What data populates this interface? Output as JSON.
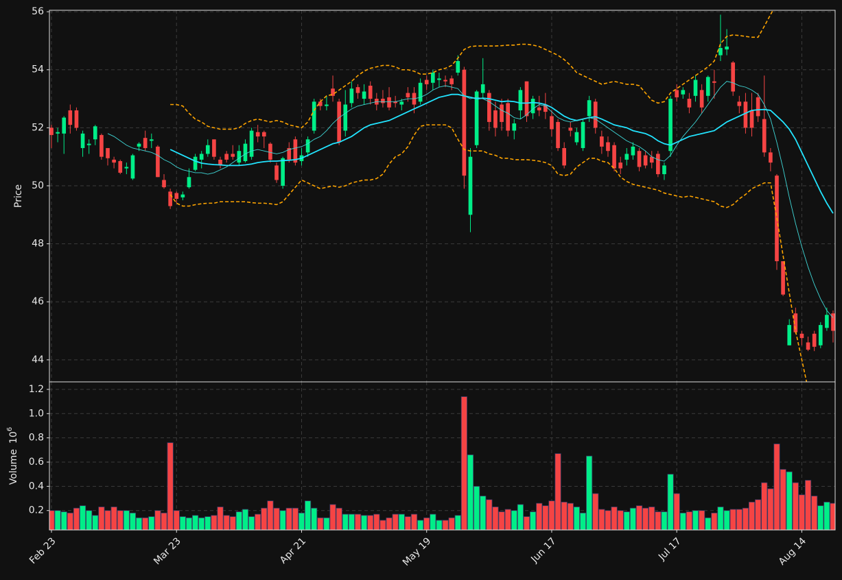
{
  "chart_data": {
    "type": "candlestick",
    "ylabel": "Price",
    "up_color": "#00ee88",
    "down_color": "#f54444",
    "grid": true,
    "ylim": [
      43.24,
      56.05
    ],
    "yticks": [
      44,
      46,
      48,
      50,
      52,
      54,
      56
    ],
    "categories": [
      "Feb 23",
      null,
      null,
      null,
      null,
      null,
      null,
      null,
      null,
      null,
      null,
      null,
      null,
      null,
      null,
      null,
      null,
      null,
      null,
      null,
      "Mar 23",
      null,
      null,
      null,
      null,
      null,
      null,
      null,
      null,
      null,
      null,
      null,
      null,
      null,
      null,
      null,
      null,
      null,
      null,
      null,
      "Apr 21",
      null,
      null,
      null,
      null,
      null,
      null,
      null,
      null,
      null,
      null,
      null,
      null,
      null,
      null,
      null,
      null,
      null,
      null,
      null,
      "May 19",
      null,
      null,
      null,
      null,
      null,
      null,
      null,
      null,
      null,
      null,
      null,
      null,
      null,
      null,
      null,
      null,
      null,
      null,
      null,
      "Jun 17",
      null,
      null,
      null,
      null,
      null,
      null,
      null,
      null,
      null,
      null,
      null,
      null,
      null,
      null,
      null,
      null,
      null,
      null,
      null,
      "Jul 17",
      null,
      null,
      null,
      null,
      null,
      null,
      null,
      null,
      null,
      null,
      null,
      null,
      null,
      null,
      null,
      null,
      null,
      null,
      null,
      "Aug 14",
      null,
      null,
      null,
      null,
      null
    ],
    "open": [
      52.0,
      51.8,
      51.8,
      52.6,
      52.6,
      51.3,
      51.4,
      51.6,
      51.75,
      51.3,
      50.9,
      50.85,
      50.6,
      50.25,
      51.35,
      51.65,
      51.55,
      51.35,
      50.2,
      49.8,
      49.75,
      49.6,
      49.95,
      50.55,
      50.9,
      51.1,
      51.6,
      50.9,
      51.1,
      51.1,
      50.8,
      50.85,
      51.0,
      51.85,
      51.85,
      51.45,
      50.7,
      50.0,
      51.3,
      51.6,
      50.85,
      51.15,
      51.9,
      52.9,
      52.75,
      53.35,
      52.9,
      51.9,
      52.85,
      53.4,
      53.0,
      53.45,
      53.0,
      53.0,
      53.05,
      52.9,
      52.8,
      53.2,
      53.2,
      52.9,
      53.65,
      53.55,
      53.65,
      53.65,
      53.7,
      53.9,
      54.0,
      49.0,
      51.4,
      53.2,
      53.2,
      52.6,
      52.8,
      52.85,
      51.9,
      52.6,
      53.6,
      52.5,
      52.7,
      52.8,
      52.4,
      52.2,
      51.3,
      52.0,
      51.5,
      51.3,
      52.4,
      52.9,
      51.7,
      51.5,
      51.4,
      50.8,
      50.9,
      51.05,
      51.2,
      51.05,
      51.0,
      51.1,
      50.4,
      51.2,
      53.3,
      53.15,
      53.0,
      53.1,
      53.3,
      53.1,
      53.6,
      54.5,
      54.7,
      54.25,
      52.9,
      52.9,
      52.6,
      53.05,
      52.3,
      51.15,
      50.35,
      47.4,
      44.5,
      45.6,
      44.9,
      44.6,
      44.9,
      44.5,
      45.1,
      45.6
    ],
    "high": [
      52.1,
      52.0,
      52.4,
      52.8,
      52.7,
      51.9,
      51.6,
      52.1,
      51.8,
      51.3,
      51.0,
      50.9,
      50.8,
      51.1,
      51.5,
      51.9,
      51.8,
      51.4,
      50.4,
      49.9,
      49.8,
      49.8,
      50.6,
      51.1,
      51.2,
      51.6,
      51.6,
      51.0,
      51.2,
      51.4,
      51.4,
      51.6,
      52.0,
      52.1,
      51.9,
      51.5,
      50.8,
      51.0,
      51.5,
      51.7,
      51.3,
      51.7,
      53.0,
      53.0,
      53.1,
      53.8,
      53.0,
      53.3,
      53.6,
      53.5,
      53.5,
      53.6,
      53.2,
      53.3,
      53.4,
      53.1,
      53.0,
      53.4,
      53.4,
      53.7,
      53.8,
      54.0,
      53.9,
      53.8,
      53.8,
      54.5,
      54.1,
      51.3,
      53.3,
      54.4,
      53.3,
      52.9,
      53.0,
      53.0,
      52.3,
      53.4,
      53.6,
      53.1,
      53.1,
      53.2,
      52.6,
      52.3,
      51.5,
      52.2,
      52.0,
      52.3,
      53.1,
      53.0,
      51.9,
      51.7,
      51.5,
      51.0,
      51.3,
      51.5,
      51.3,
      51.2,
      51.2,
      51.2,
      50.8,
      53.1,
      53.5,
      53.4,
      53.2,
      53.8,
      53.5,
      53.8,
      54.0,
      55.9,
      55.4,
      54.3,
      53.1,
      53.2,
      53.2,
      53.2,
      53.8,
      51.3,
      50.4,
      47.4,
      45.4,
      45.8,
      45.0,
      44.8,
      45.0,
      45.3,
      45.8,
      45.7
    ],
    "low": [
      51.3,
      51.5,
      51.1,
      51.8,
      51.9,
      51.0,
      51.1,
      51.4,
      50.9,
      50.7,
      50.6,
      50.4,
      50.4,
      50.2,
      51.2,
      51.2,
      51.3,
      50.3,
      49.9,
      49.2,
      49.4,
      49.5,
      49.9,
      50.5,
      50.6,
      51.0,
      50.9,
      50.6,
      50.8,
      50.9,
      50.7,
      50.8,
      50.9,
      51.5,
      51.3,
      50.8,
      50.1,
      49.9,
      50.8,
      50.7,
      50.7,
      51.0,
      51.8,
      52.6,
      52.6,
      52.9,
      51.4,
      51.7,
      52.7,
      53.0,
      52.8,
      52.8,
      52.6,
      52.7,
      52.6,
      52.7,
      52.6,
      52.9,
      52.5,
      52.8,
      53.3,
      53.3,
      53.4,
      53.4,
      53.3,
      53.8,
      49.9,
      48.4,
      51.3,
      53.0,
      51.9,
      51.7,
      51.9,
      51.7,
      51.6,
      52.3,
      52.2,
      52.3,
      52.4,
      52.3,
      51.7,
      51.2,
      50.6,
      51.7,
      51.4,
      51.2,
      52.2,
      51.8,
      51.1,
      51.0,
      50.5,
      50.4,
      50.7,
      50.9,
      50.5,
      50.6,
      50.6,
      50.3,
      50.2,
      51.0,
      52.9,
      53.0,
      52.5,
      52.9,
      52.5,
      52.9,
      53.0,
      54.3,
      54.5,
      53.1,
      52.5,
      51.8,
      51.7,
      52.2,
      51.0,
      50.5,
      47.1,
      46.2,
      44.5,
      44.9,
      44.5,
      44.3,
      44.3,
      44.4,
      45.0,
      44.6
    ],
    "close": [
      51.75,
      51.85,
      52.35,
      52.1,
      52.0,
      51.8,
      51.45,
      52.05,
      51.0,
      50.95,
      50.8,
      50.45,
      50.65,
      51.05,
      51.45,
      51.3,
      51.6,
      50.3,
      49.95,
      49.3,
      49.55,
      49.7,
      50.3,
      51.0,
      51.1,
      51.4,
      51.0,
      50.7,
      50.9,
      51.0,
      51.2,
      51.45,
      51.9,
      51.7,
      51.7,
      50.9,
      50.2,
      50.95,
      50.9,
      50.8,
      51.05,
      51.6,
      52.9,
      52.75,
      52.8,
      53.1,
      51.5,
      52.8,
      53.35,
      53.2,
      53.25,
      53.0,
      52.8,
      52.85,
      52.7,
      52.85,
      52.9,
      53.05,
      52.8,
      53.55,
      53.5,
      53.9,
      53.7,
      53.6,
      53.5,
      54.3,
      50.35,
      51.0,
      53.25,
      53.5,
      52.2,
      52.0,
      52.2,
      51.9,
      52.15,
      53.3,
      52.4,
      53.0,
      52.6,
      52.55,
      51.95,
      51.3,
      50.7,
      51.9,
      51.85,
      52.2,
      52.95,
      52.0,
      51.35,
      51.2,
      50.6,
      50.6,
      51.1,
      51.35,
      50.65,
      50.7,
      50.8,
      50.4,
      50.7,
      53.0,
      53.05,
      53.3,
      52.7,
      53.65,
      52.7,
      53.75,
      53.55,
      54.75,
      54.8,
      53.25,
      52.75,
      52.0,
      52.0,
      52.4,
      51.15,
      50.8,
      47.4,
      46.25,
      45.2,
      44.95,
      44.75,
      44.35,
      44.45,
      45.2,
      45.55,
      45.0
    ],
    "overlays": [
      {
        "color": "#ffa500",
        "width": 1.6,
        "dashed": true,
        "values": [
          null,
          null,
          null,
          null,
          null,
          null,
          null,
          null,
          null,
          null,
          null,
          null,
          null,
          null,
          null,
          null,
          null,
          null,
          null,
          52.8,
          52.8,
          52.75,
          52.5,
          52.3,
          52.2,
          52.05,
          52.0,
          51.95,
          51.95,
          51.95,
          52.0,
          52.15,
          52.25,
          52.3,
          52.25,
          52.2,
          52.25,
          52.2,
          52.1,
          52.05,
          52.0,
          52.2,
          52.6,
          52.9,
          53.1,
          53.15,
          53.3,
          53.45,
          53.6,
          53.8,
          53.95,
          54.05,
          54.1,
          54.15,
          54.15,
          54.1,
          54.0,
          54.0,
          53.95,
          53.85,
          53.85,
          53.9,
          54.0,
          54.05,
          54.15,
          54.4,
          54.7,
          54.8,
          54.82,
          54.82,
          54.82,
          54.82,
          54.83,
          54.85,
          54.85,
          54.88,
          54.88,
          54.85,
          54.8,
          54.7,
          54.6,
          54.5,
          54.35,
          54.15,
          53.9,
          53.8,
          53.7,
          53.6,
          53.5,
          53.55,
          53.6,
          53.55,
          53.5,
          53.5,
          53.45,
          53.2,
          52.95,
          52.85,
          52.9,
          53.2,
          53.35,
          53.5,
          53.65,
          53.8,
          53.95,
          54.1,
          54.3,
          54.9,
          55.15,
          55.2,
          55.18,
          55.15,
          55.12,
          55.12,
          55.5,
          55.9,
          56.3,
          56.8,
          57.3,
          57.7,
          58.0,
          58.2,
          58.3,
          58.3,
          58.2,
          58.0
        ]
      },
      {
        "color": "#ffa500",
        "width": 1.6,
        "dashed": true,
        "values": [
          null,
          null,
          null,
          null,
          null,
          null,
          null,
          null,
          null,
          null,
          null,
          null,
          null,
          null,
          null,
          null,
          null,
          null,
          null,
          49.7,
          49.4,
          49.3,
          49.3,
          49.35,
          49.38,
          49.4,
          49.4,
          49.45,
          49.45,
          49.45,
          49.45,
          49.45,
          49.42,
          49.4,
          49.4,
          49.38,
          49.35,
          49.45,
          49.7,
          49.95,
          50.2,
          50.1,
          50.0,
          49.9,
          49.95,
          50.0,
          49.95,
          50.0,
          50.1,
          50.15,
          50.2,
          50.2,
          50.25,
          50.4,
          50.75,
          51.0,
          51.1,
          51.35,
          51.75,
          52.05,
          52.1,
          52.1,
          52.1,
          52.1,
          52.0,
          51.6,
          51.25,
          51.2,
          51.2,
          51.2,
          51.1,
          51.05,
          50.95,
          50.95,
          50.9,
          50.9,
          50.9,
          50.88,
          50.85,
          50.8,
          50.7,
          50.4,
          50.35,
          50.4,
          50.65,
          50.8,
          50.95,
          50.95,
          50.85,
          50.8,
          50.6,
          50.3,
          50.15,
          50.05,
          50.0,
          49.95,
          49.9,
          49.85,
          49.75,
          49.7,
          49.65,
          49.6,
          49.65,
          49.6,
          49.55,
          49.5,
          49.45,
          49.3,
          49.25,
          49.35,
          49.55,
          49.7,
          49.9,
          50.0,
          50.1,
          50.1,
          48.9,
          47.6,
          46.3,
          45.0,
          44.0,
          43.0,
          42.2,
          41.5,
          41.0,
          40.6
        ]
      },
      {
        "color": "#22e4ff",
        "width": 1.8,
        "dashed": false,
        "values": [
          null,
          null,
          null,
          null,
          null,
          null,
          null,
          null,
          null,
          null,
          null,
          null,
          null,
          null,
          null,
          null,
          null,
          null,
          null,
          51.25,
          51.15,
          51.05,
          50.95,
          50.85,
          50.78,
          50.75,
          50.73,
          50.72,
          50.7,
          50.7,
          50.7,
          50.72,
          50.75,
          50.8,
          50.83,
          50.85,
          50.85,
          50.87,
          50.88,
          50.9,
          50.95,
          51.05,
          51.15,
          51.25,
          51.35,
          51.45,
          51.5,
          51.6,
          51.7,
          51.85,
          52.0,
          52.1,
          52.15,
          52.2,
          52.25,
          52.35,
          52.45,
          52.55,
          52.65,
          52.75,
          52.85,
          52.95,
          53.05,
          53.1,
          53.15,
          53.15,
          53.1,
          53.05,
          53.0,
          53.02,
          53.0,
          52.95,
          52.9,
          52.92,
          52.9,
          52.85,
          52.85,
          52.87,
          52.85,
          52.8,
          52.7,
          52.55,
          52.4,
          52.3,
          52.25,
          52.3,
          52.35,
          52.38,
          52.3,
          52.2,
          52.1,
          52.05,
          52.0,
          51.9,
          51.85,
          51.8,
          51.7,
          51.55,
          51.45,
          51.4,
          51.5,
          51.6,
          51.7,
          51.75,
          51.8,
          51.85,
          51.9,
          52.05,
          52.2,
          52.3,
          52.4,
          52.5,
          52.6,
          52.62,
          52.63,
          52.6,
          52.4,
          52.2,
          51.95,
          51.6,
          51.15,
          50.7,
          50.25,
          49.8,
          49.4,
          49.05
        ]
      },
      {
        "color": "#3fd8d8",
        "width": 0.9,
        "dashed": false,
        "values": [
          null,
          null,
          null,
          null,
          null,
          null,
          null,
          null,
          null,
          51.8,
          51.7,
          51.55,
          51.4,
          51.3,
          51.25,
          51.2,
          51.15,
          51.05,
          50.9,
          50.8,
          50.65,
          50.55,
          50.5,
          50.45,
          50.45,
          50.4,
          50.45,
          50.55,
          50.65,
          50.8,
          50.95,
          51.1,
          51.2,
          51.25,
          51.2,
          51.15,
          51.1,
          51.15,
          51.25,
          51.3,
          51.35,
          51.45,
          51.6,
          51.7,
          51.9,
          52.15,
          52.35,
          52.5,
          52.65,
          52.75,
          52.8,
          52.85,
          52.9,
          52.9,
          52.9,
          52.9,
          52.95,
          53.0,
          53.0,
          53.05,
          53.15,
          53.3,
          53.4,
          53.45,
          53.4,
          53.35,
          53.1,
          53.0,
          53.05,
          53.0,
          52.9,
          52.75,
          52.6,
          52.5,
          52.35,
          52.3,
          52.45,
          52.65,
          52.8,
          52.75,
          52.55,
          52.35,
          52.25,
          52.2,
          52.25,
          52.3,
          52.35,
          52.3,
          52.15,
          52.0,
          51.85,
          51.7,
          51.55,
          51.45,
          51.35,
          51.2,
          51.0,
          50.9,
          50.85,
          51.05,
          51.4,
          51.7,
          51.95,
          52.2,
          52.5,
          52.8,
          53.1,
          53.4,
          53.6,
          53.55,
          53.45,
          53.4,
          53.3,
          53.15,
          52.8,
          52.3,
          51.5,
          50.6,
          49.6,
          48.7,
          47.9,
          47.2,
          46.6,
          46.1,
          45.7,
          45.45
        ]
      }
    ],
    "volume": {
      "type": "bar",
      "ylabel": "Volume",
      "unit_base": "10",
      "unit_exponent": "6",
      "ylim": [
        0.04,
        1.262
      ],
      "yticks": [
        0.2,
        0.4,
        0.6,
        0.8,
        {
          "value": 1,
          "label": "1.0"
        },
        1.2
      ],
      "values": [
        0.2,
        0.2,
        0.19,
        0.18,
        0.22,
        0.24,
        0.2,
        0.16,
        0.23,
        0.2,
        0.23,
        0.2,
        0.2,
        0.18,
        0.14,
        0.14,
        0.15,
        0.2,
        0.18,
        0.76,
        0.2,
        0.15,
        0.14,
        0.16,
        0.14,
        0.15,
        0.16,
        0.23,
        0.16,
        0.15,
        0.19,
        0.21,
        0.15,
        0.17,
        0.22,
        0.28,
        0.22,
        0.2,
        0.22,
        0.22,
        0.18,
        0.28,
        0.22,
        0.14,
        0.14,
        0.25,
        0.22,
        0.17,
        0.17,
        0.17,
        0.16,
        0.16,
        0.17,
        0.12,
        0.14,
        0.17,
        0.17,
        0.15,
        0.17,
        0.12,
        0.14,
        0.17,
        0.12,
        0.12,
        0.14,
        0.16,
        1.14,
        0.66,
        0.4,
        0.32,
        0.29,
        0.23,
        0.19,
        0.21,
        0.2,
        0.25,
        0.15,
        0.19,
        0.26,
        0.24,
        0.28,
        0.67,
        0.27,
        0.26,
        0.23,
        0.18,
        0.65,
        0.34,
        0.21,
        0.2,
        0.23,
        0.2,
        0.19,
        0.22,
        0.24,
        0.22,
        0.23,
        0.19,
        0.19,
        0.5,
        0.34,
        0.18,
        0.19,
        0.2,
        0.2,
        0.14,
        0.18,
        0.23,
        0.2,
        0.21,
        0.21,
        0.22,
        0.27,
        0.29,
        0.43,
        0.38,
        0.75,
        0.54,
        0.52,
        0.43,
        0.33,
        0.45,
        0.32,
        0.24,
        0.27,
        0.26
      ]
    }
  }
}
